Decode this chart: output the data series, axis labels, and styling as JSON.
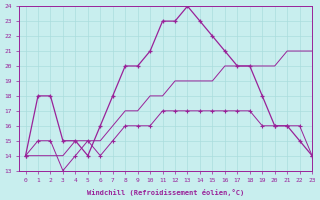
{
  "xlabel": "Windchill (Refroidissement éolien,°C)",
  "xlim": [
    -0.5,
    23
  ],
  "ylim": [
    13,
    24
  ],
  "xticks": [
    0,
    1,
    2,
    3,
    4,
    5,
    6,
    7,
    8,
    9,
    10,
    11,
    12,
    13,
    14,
    15,
    16,
    17,
    18,
    19,
    20,
    21,
    22,
    23
  ],
  "yticks": [
    13,
    14,
    15,
    16,
    17,
    18,
    19,
    20,
    21,
    22,
    23,
    24
  ],
  "bg_color": "#c8eeee",
  "line_color": "#992299",
  "grid_color": "#aadddd",
  "line1_x": [
    0,
    1,
    2,
    3,
    4,
    5,
    6,
    7,
    8,
    9,
    10,
    11,
    12,
    13,
    14,
    15,
    16,
    17,
    18,
    19,
    20,
    21,
    22,
    23
  ],
  "line1_y": [
    14,
    18,
    18,
    15,
    15,
    14,
    16,
    18,
    20,
    20,
    21,
    23,
    23,
    24,
    23,
    22,
    21,
    20,
    20,
    18,
    16,
    16,
    15,
    14
  ],
  "line2_x": [
    0,
    1,
    2,
    3,
    4,
    5,
    6,
    7,
    8,
    9,
    10,
    11,
    12,
    13,
    14,
    15,
    16,
    17,
    18,
    19,
    20,
    21,
    22,
    23
  ],
  "line2_y": [
    14,
    14,
    14,
    14,
    15,
    15,
    15,
    16,
    17,
    17,
    18,
    18,
    19,
    19,
    19,
    19,
    20,
    20,
    20,
    20,
    20,
    21,
    21,
    21
  ],
  "line3_x": [
    0,
    1,
    2,
    3,
    4,
    5,
    6,
    7,
    8,
    9,
    10,
    11,
    12,
    13,
    14,
    15,
    16,
    17,
    18,
    19,
    20,
    21,
    22,
    23
  ],
  "line3_y": [
    14,
    15,
    15,
    13,
    14,
    15,
    14,
    15,
    16,
    16,
    16,
    17,
    17,
    17,
    17,
    17,
    17,
    17,
    17,
    16,
    16,
    16,
    16,
    14
  ],
  "line4_x": [
    0,
    1,
    2,
    3,
    4,
    5,
    6,
    7,
    8,
    9,
    10,
    11,
    12,
    13,
    14,
    15,
    16,
    17,
    18,
    19,
    20,
    21,
    22,
    23
  ],
  "line4_y": [
    13,
    13,
    13,
    13,
    13,
    13,
    13,
    13,
    13,
    13,
    13,
    13,
    13,
    13,
    13,
    13,
    13,
    13,
    13,
    13,
    13,
    13,
    13,
    13
  ]
}
